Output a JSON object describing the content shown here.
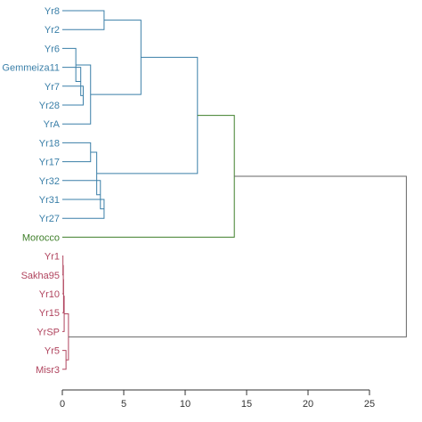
{
  "chart_data": {
    "type": "dendrogram",
    "orientation": "horizontal",
    "axis": {
      "ticks": [
        0,
        5,
        10,
        15,
        20,
        25
      ],
      "xlim": [
        0,
        28
      ]
    },
    "colors": {
      "cluster_blue": "#3a7fa8",
      "cluster_green": "#3f7f2a",
      "cluster_red": "#b0445e"
    },
    "leaves": [
      {
        "name": "Yr8",
        "cluster": "blue"
      },
      {
        "name": "Yr2",
        "cluster": "blue"
      },
      {
        "name": "Yr6",
        "cluster": "blue"
      },
      {
        "name": "Gemmeiza11",
        "cluster": "blue"
      },
      {
        "name": "Yr7",
        "cluster": "blue"
      },
      {
        "name": "Yr28",
        "cluster": "blue"
      },
      {
        "name": "YrA",
        "cluster": "blue"
      },
      {
        "name": "Yr18",
        "cluster": "blue"
      },
      {
        "name": "Yr17",
        "cluster": "blue"
      },
      {
        "name": "Yr32",
        "cluster": "blue"
      },
      {
        "name": "Yr31",
        "cluster": "blue"
      },
      {
        "name": "Yr27",
        "cluster": "blue"
      },
      {
        "name": "Morocco",
        "cluster": "green"
      },
      {
        "name": "Yr1",
        "cluster": "red"
      },
      {
        "name": "Sakha95",
        "cluster": "red"
      },
      {
        "name": "Yr10",
        "cluster": "red"
      },
      {
        "name": "Yr15",
        "cluster": "red"
      },
      {
        "name": "YrSP",
        "cluster": "red"
      },
      {
        "name": "Yr5",
        "cluster": "red"
      },
      {
        "name": "Misr3",
        "cluster": "red"
      }
    ],
    "merges": [
      {
        "left": "Yr8",
        "right": "Yr2",
        "height": 3.4,
        "cluster": "blue"
      },
      {
        "left": "Yr7",
        "right": "Yr28",
        "height": 1.7,
        "cluster": "blue"
      },
      {
        "left": "Gemmeiza11",
        "right": "n1",
        "height": 1.5,
        "cluster": "blue"
      },
      {
        "left": "Yr6",
        "right": "n2",
        "height": 1.1,
        "cluster": "blue"
      },
      {
        "left": "n3",
        "right": "YrA",
        "height": 2.3,
        "cluster": "blue"
      },
      {
        "left": "n0",
        "right": "n4",
        "height": 6.4,
        "cluster": "blue"
      },
      {
        "left": "Yr18",
        "right": "Yr17",
        "height": 2.3,
        "cluster": "blue"
      },
      {
        "left": "Yr31",
        "right": "Yr27",
        "height": 3.4,
        "cluster": "blue"
      },
      {
        "left": "Yr32",
        "right": "n7",
        "height": 3.1,
        "cluster": "blue"
      },
      {
        "left": "n6",
        "right": "n8",
        "height": 2.8,
        "cluster": "blue"
      },
      {
        "left": "n5",
        "right": "n9",
        "height": 11.0,
        "cluster": "blue"
      },
      {
        "left": "n10",
        "right": "Morocco",
        "height": 14.0,
        "cluster": "green"
      },
      {
        "left": "Yr1",
        "right": "Sakha95",
        "height": 0.05,
        "cluster": "red"
      },
      {
        "left": "n12",
        "right": "Yr10",
        "height": 0.08,
        "cluster": "red"
      },
      {
        "left": "n13",
        "right": "Yr15",
        "height": 0.1,
        "cluster": "red"
      },
      {
        "left": "n14",
        "right": "YrSP",
        "height": 0.15,
        "cluster": "red"
      },
      {
        "left": "Yr5",
        "right": "Misr3",
        "height": 0.3,
        "cluster": "red"
      },
      {
        "left": "n15",
        "right": "n16",
        "height": 0.5,
        "cluster": "red"
      },
      {
        "left": "n11",
        "right": "n17",
        "height": 28.0,
        "cluster": "grey"
      }
    ]
  }
}
